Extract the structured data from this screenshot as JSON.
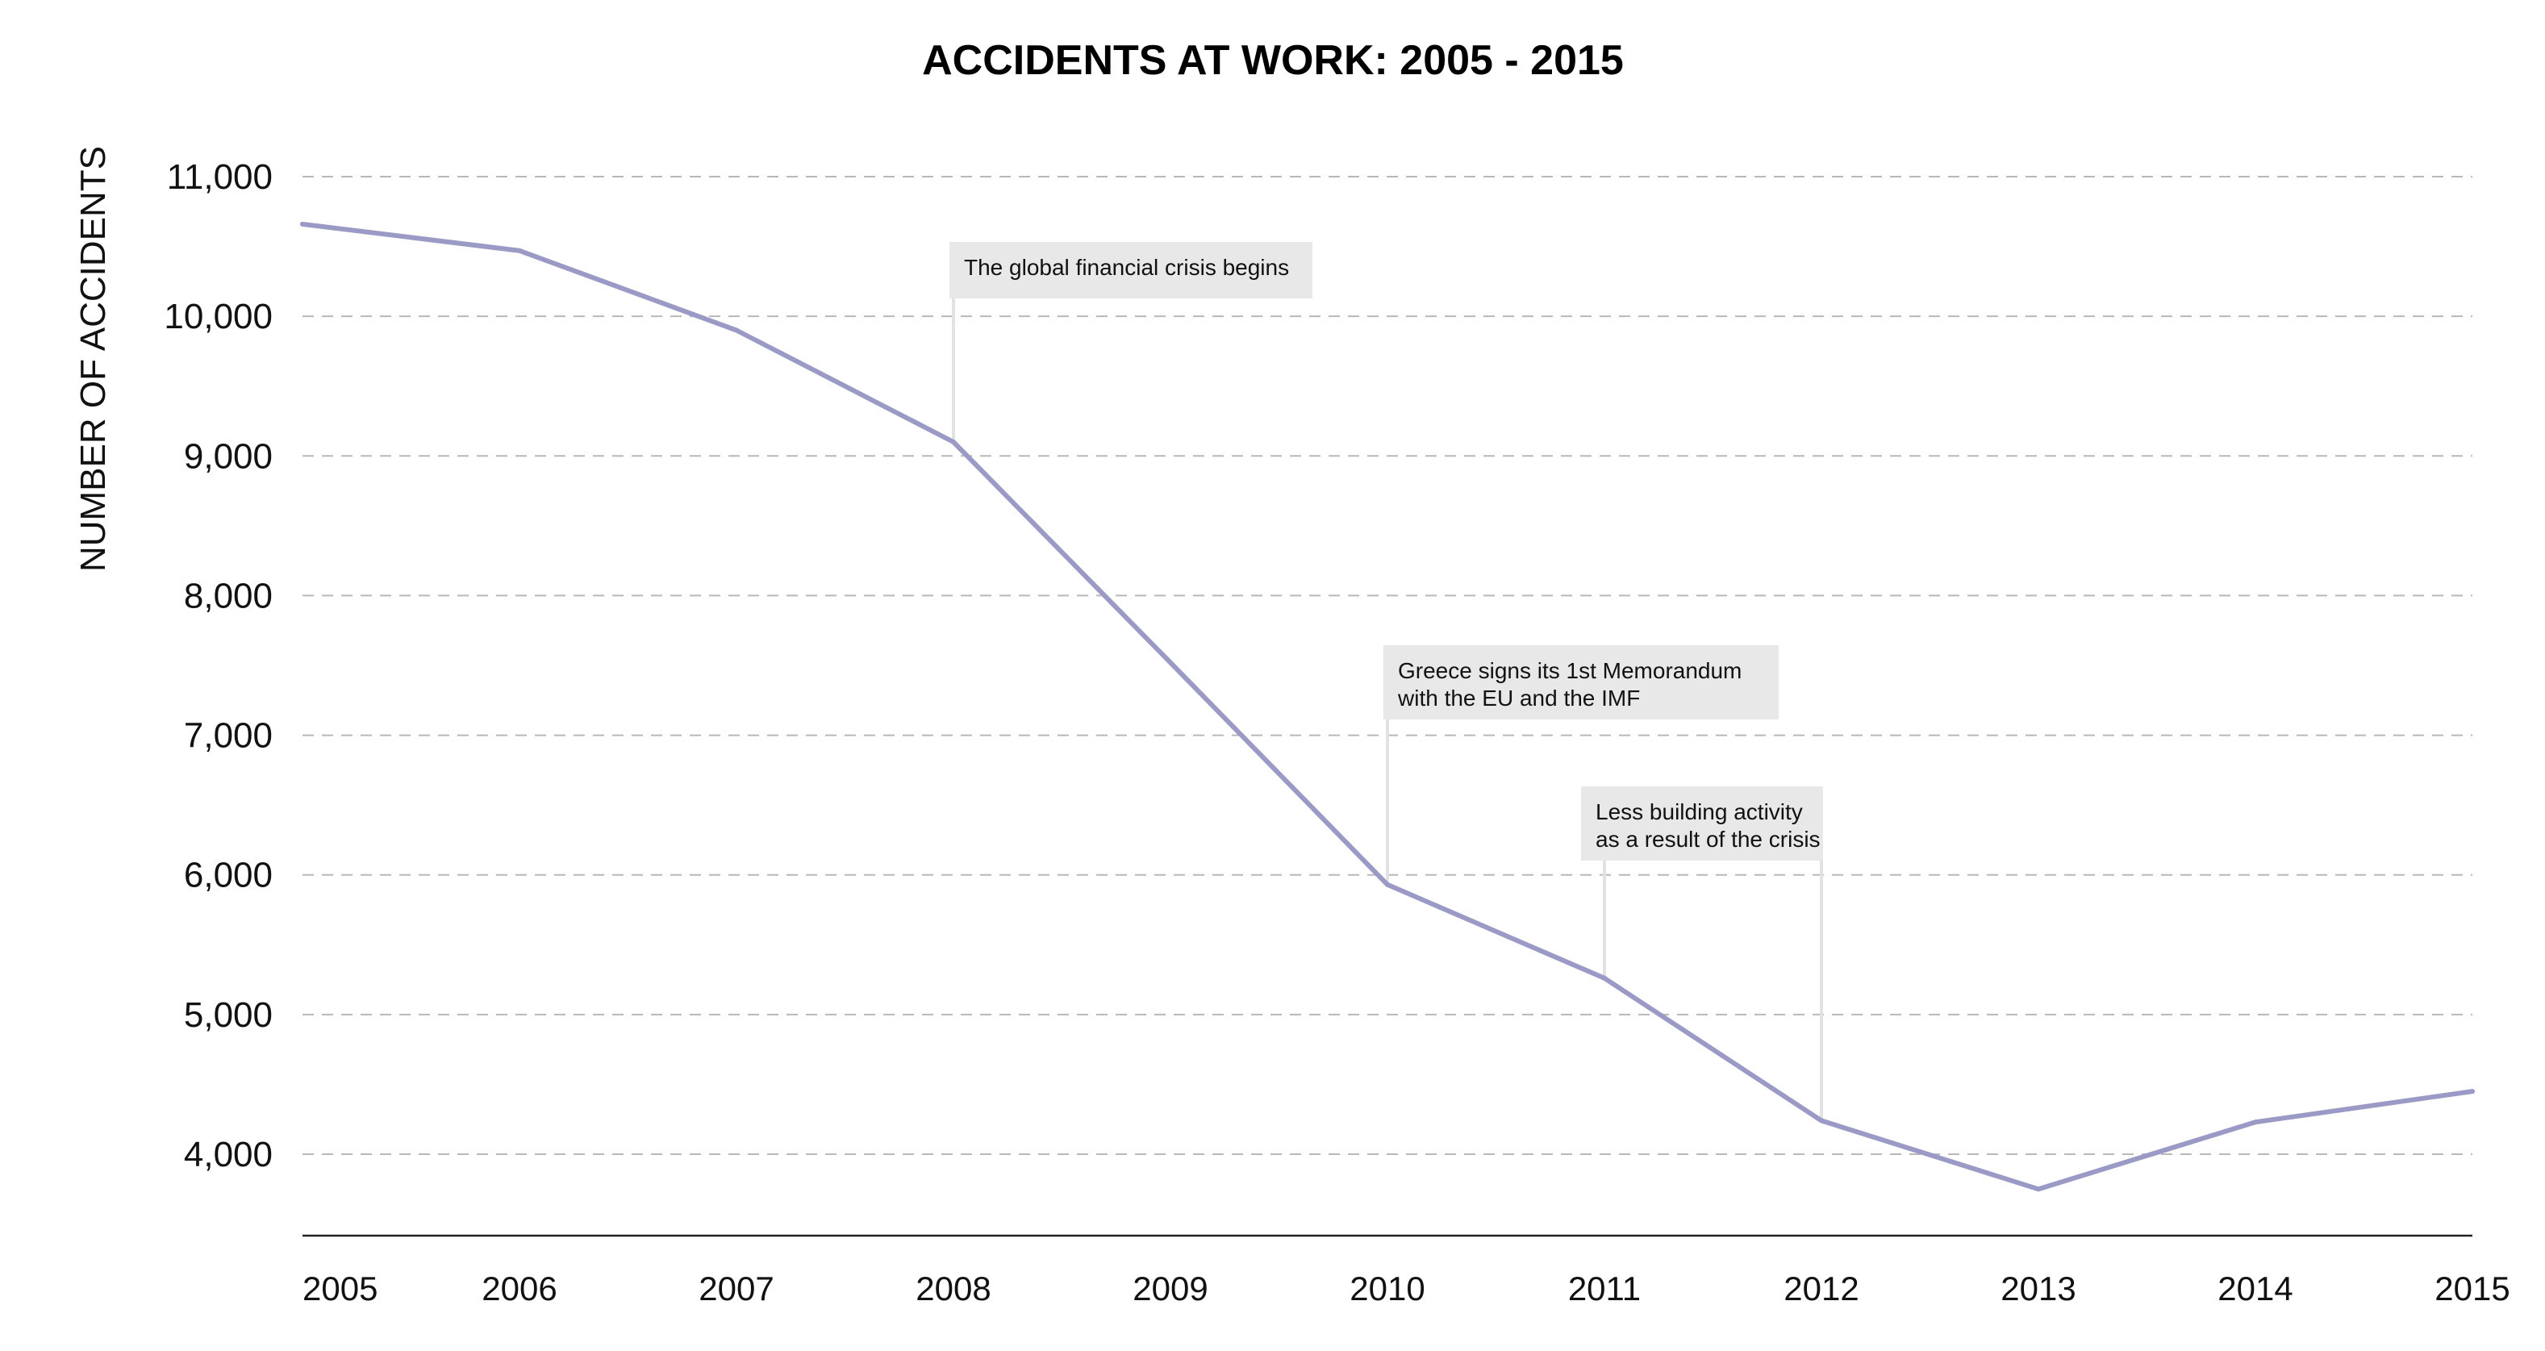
{
  "chart_data": {
    "type": "line",
    "title": "ACCIDENTS AT WORK: 2005 - 2015",
    "xlabel": "",
    "ylabel": "NUMBER OF ACCIDENTS",
    "ylim": [
      3400,
      11300
    ],
    "yticks": [
      4000,
      5000,
      6000,
      7000,
      8000,
      9000,
      10000,
      11000
    ],
    "ytick_labels": [
      "4,000",
      "5,000",
      "6,000",
      "7,000",
      "8,000",
      "9,000",
      "10,000",
      "11,000"
    ],
    "grid": true,
    "x": [
      2005,
      2006,
      2007,
      2008,
      2009,
      2010,
      2011,
      2012,
      2013,
      2014,
      2015
    ],
    "xtick_labels": [
      "2005",
      "2006",
      "2007",
      "2008",
      "2009",
      "2010",
      "2011",
      "2012",
      "2013",
      "2014",
      "2015"
    ],
    "series": [
      {
        "values": [
          10660,
          10470,
          9900,
          9100,
          7520,
          5930,
          5260,
          4240,
          3750,
          4230,
          4450
        ]
      }
    ],
    "annotations": [
      {
        "lines": [
          "The global financial crisis begins"
        ],
        "x": 2008,
        "y": 9100
      },
      {
        "lines": [
          "Greece signs its 1st Memorandum",
          "with the EU and the IMF"
        ],
        "x": 2010,
        "y": 5930
      },
      {
        "lines": [
          "Less building activity",
          "as a result of the crisis"
        ],
        "x": 2011,
        "y": 5260,
        "x2": 2012,
        "y2": 4240
      }
    ]
  },
  "colors": {
    "line": "#9b9ac6",
    "grid": "#b8b8b8",
    "axis": "#222222",
    "callout_bg": "#e8e8e8"
  }
}
